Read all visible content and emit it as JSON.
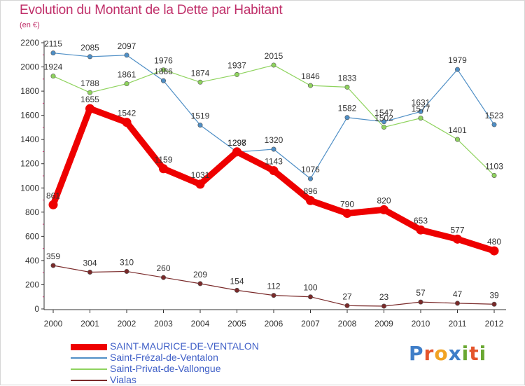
{
  "title": "Evolution du Montant de la Dette par Habitant",
  "subtitle": "(en €)",
  "logo": {
    "text": "Proxiti",
    "colors": [
      "#3f7ec8",
      "#e4542b",
      "#f1a323",
      "#3f7ec8",
      "#6aa832",
      "#e4542b",
      "#6aa832"
    ]
  },
  "chart_data": {
    "type": "line",
    "categories": [
      "2000",
      "2001",
      "2002",
      "2003",
      "2004",
      "2005",
      "2006",
      "2007",
      "2008",
      "2009",
      "2010",
      "2011",
      "2012"
    ],
    "ylim": [
      0,
      2200
    ],
    "yticks": [
      "0",
      "200",
      "400",
      "600",
      "800",
      "1000",
      "1200",
      "1400",
      "1600",
      "1800",
      "2000",
      "2200"
    ],
    "grid": false,
    "legend_position": "bottom-left",
    "series": [
      {
        "name": "SAINT-MAURICE-DE-VENTALON",
        "color": "#ee0000",
        "emphasis": true,
        "values": [
          861,
          1655,
          1542,
          1159,
          1031,
          1298,
          1143,
          896,
          790,
          820,
          653,
          577,
          480
        ]
      },
      {
        "name": "Saint-Frézal-de-Ventalon",
        "color": "#4f8fc6",
        "emphasis": false,
        "values": [
          2115,
          2085,
          2097,
          1886,
          1519,
          1297,
          1320,
          1076,
          1582,
          1547,
          1631,
          1979,
          1523
        ]
      },
      {
        "name": "Saint-Privat-de-Vallongue",
        "color": "#8fd35e",
        "emphasis": false,
        "values": [
          1924,
          1788,
          1861,
          1976,
          1874,
          1937,
          2015,
          1846,
          1833,
          1502,
          1577,
          1401,
          1103
        ]
      },
      {
        "name": "Vialas",
        "color": "#7a2a2a",
        "emphasis": false,
        "values": [
          359,
          304,
          310,
          260,
          209,
          154,
          112,
          100,
          27,
          23,
          57,
          47,
          39
        ]
      }
    ]
  }
}
